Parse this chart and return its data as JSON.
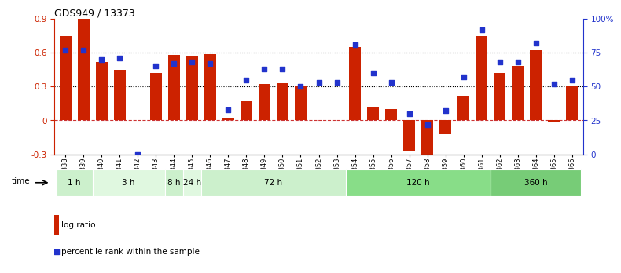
{
  "title": "GDS949 / 13373",
  "samples": [
    "GSM22838",
    "GSM22839",
    "GSM22840",
    "GSM22841",
    "GSM22842",
    "GSM22843",
    "GSM22844",
    "GSM22845",
    "GSM22846",
    "GSM22847",
    "GSM22848",
    "GSM22849",
    "GSM22850",
    "GSM22851",
    "GSM22852",
    "GSM22853",
    "GSM22854",
    "GSM22855",
    "GSM22856",
    "GSM22857",
    "GSM22858",
    "GSM22859",
    "GSM22860",
    "GSM22861",
    "GSM22862",
    "GSM22863",
    "GSM22864",
    "GSM22865",
    "GSM22866"
  ],
  "log_ratio": [
    0.75,
    0.9,
    0.52,
    0.45,
    0.0,
    0.42,
    0.58,
    0.57,
    0.59,
    0.02,
    0.17,
    0.32,
    0.33,
    0.3,
    0.0,
    0.0,
    0.65,
    0.12,
    0.1,
    -0.27,
    -0.38,
    -0.12,
    0.22,
    0.75,
    0.42,
    0.48,
    0.62,
    -0.02,
    0.3
  ],
  "percentile": [
    0.77,
    0.77,
    0.7,
    0.71,
    0.0,
    0.65,
    0.67,
    0.68,
    0.67,
    0.33,
    0.55,
    0.63,
    0.63,
    0.5,
    0.53,
    0.53,
    0.81,
    0.6,
    0.53,
    0.3,
    0.22,
    0.32,
    0.57,
    0.92,
    0.68,
    0.68,
    0.82,
    0.52,
    0.55
  ],
  "time_groups": [
    {
      "label": "1 h",
      "start": 0,
      "end": 2,
      "color": "#ccf0cc"
    },
    {
      "label": "3 h",
      "start": 2,
      "end": 6,
      "color": "#e0f8e0"
    },
    {
      "label": "8 h",
      "start": 6,
      "end": 7,
      "color": "#ccf0cc"
    },
    {
      "label": "24 h",
      "start": 7,
      "end": 8,
      "color": "#e0f8e0"
    },
    {
      "label": "72 h",
      "start": 8,
      "end": 16,
      "color": "#ccf0cc"
    },
    {
      "label": "120 h",
      "start": 16,
      "end": 24,
      "color": "#88dd88"
    },
    {
      "label": "360 h",
      "start": 24,
      "end": 29,
      "color": "#77cc77"
    }
  ],
  "ylim_left": [
    -0.3,
    0.9
  ],
  "ylim_right": [
    0.0,
    1.0
  ],
  "yticks_left": [
    -0.3,
    0.0,
    0.3,
    0.6,
    0.9
  ],
  "ytick_labels_left": [
    "-0.3",
    "0",
    "0.3",
    "0.6",
    "0.9"
  ],
  "yticks_right": [
    0.0,
    0.25,
    0.5,
    0.75,
    1.0
  ],
  "ytick_labels_right": [
    "0",
    "25",
    "50",
    "75",
    "100%"
  ],
  "hlines": [
    0.3,
    0.6
  ],
  "bar_color": "#cc2200",
  "dot_color": "#2233cc",
  "zero_line_color": "#cc3333",
  "grid_color": "#888888",
  "bg_color": "#ffffff",
  "border_color": "#aaaaaa"
}
